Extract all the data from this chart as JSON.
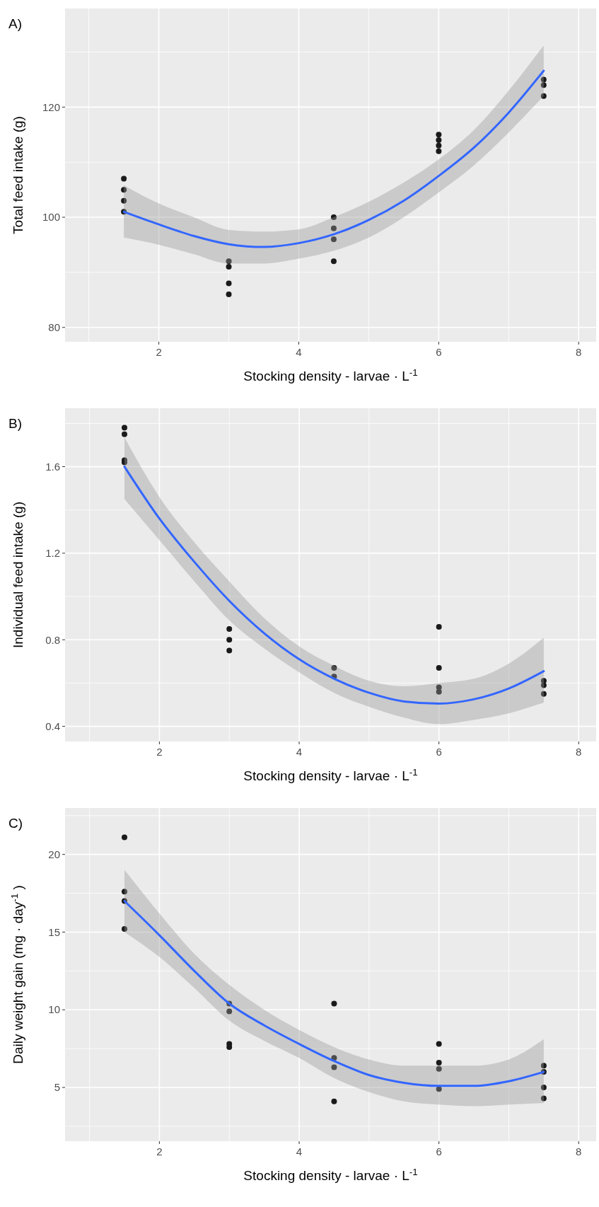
{
  "chart_data": [
    {
      "type": "scatter",
      "title": "A)",
      "xlabel": "Stocking density - larvae · L$^{-1}$",
      "ylabel": "Total feed intake (g)",
      "xlim": [
        0.66,
        8.25
      ],
      "ylim": [
        77.4,
        137.9
      ],
      "xticks": [
        2,
        4,
        6,
        8
      ],
      "yticks": [
        80,
        100,
        120
      ],
      "grid": true,
      "series": [
        {
          "type": "scatter",
          "color": "#1a1a1a",
          "marker": "circle",
          "x": [
            1.5,
            1.5,
            1.5,
            1.5,
            3,
            3,
            3,
            3,
            4.5,
            4.5,
            4.5,
            4.5,
            6,
            6,
            6,
            6,
            7.5,
            7.5,
            7.5
          ],
          "values": [
            107,
            105,
            103,
            101,
            92,
            91,
            88,
            86,
            100,
            98,
            96,
            92,
            115,
            114,
            113,
            112,
            125,
            124,
            122
          ]
        },
        {
          "type": "line",
          "color": "#3366ff",
          "line_style": "solid",
          "x": [
            1.5,
            2,
            2.5,
            3,
            3.5,
            4,
            4.5,
            5,
            5.5,
            6,
            6.5,
            7,
            7.5
          ],
          "values": [
            101,
            98.7,
            96.6,
            95.1,
            94.6,
            95.3,
            96.9,
            99.5,
            103,
            107.5,
            112.6,
            119,
            126.6
          ],
          "lower": [
            96.3,
            95,
            93.3,
            91.6,
            91.6,
            92.5,
            93.9,
            96.3,
            100,
            104.5,
            109.4,
            115.4,
            122
          ],
          "upper": [
            105.8,
            102.5,
            100,
            97.7,
            97.4,
            97.8,
            100,
            102.8,
            106.3,
            110.5,
            115.8,
            123,
            131.2
          ]
        }
      ]
    },
    {
      "type": "scatter",
      "title": "B)",
      "xlabel": "Stocking density - larvae · L$^{-1}$",
      "ylabel": "Individual feed intake (g)",
      "xlim": [
        0.65,
        8.25
      ],
      "ylim": [
        0.33,
        1.87
      ],
      "xticks": [
        2,
        4,
        6,
        8
      ],
      "yticks": [
        0.4,
        0.8,
        1.2,
        1.6
      ],
      "grid": true,
      "series": [
        {
          "type": "scatter",
          "color": "#1a1a1a",
          "marker": "circle",
          "x": [
            1.5,
            1.5,
            1.5,
            1.5,
            3,
            3,
            3,
            4.5,
            4.5,
            6,
            6,
            6,
            6,
            7.5,
            7.5,
            7.5
          ],
          "values": [
            1.78,
            1.75,
            1.63,
            1.62,
            0.85,
            0.8,
            0.75,
            0.67,
            0.63,
            0.86,
            0.67,
            0.58,
            0.56,
            0.61,
            0.59,
            0.55
          ]
        },
        {
          "type": "line",
          "color": "#3366ff",
          "line_style": "solid",
          "x": [
            1.5,
            2,
            2.5,
            3,
            3.5,
            4,
            4.5,
            5,
            5.5,
            6,
            6.5,
            7,
            7.5
          ],
          "values": [
            1.6,
            1.36,
            1.16,
            0.98,
            0.83,
            0.71,
            0.62,
            0.555,
            0.515,
            0.505,
            0.525,
            0.575,
            0.655
          ],
          "lower": [
            1.45,
            1.26,
            1.07,
            0.89,
            0.76,
            0.65,
            0.555,
            0.49,
            0.44,
            0.41,
            0.43,
            0.46,
            0.51
          ],
          "upper": [
            1.735,
            1.46,
            1.25,
            1.07,
            0.9,
            0.77,
            0.68,
            0.61,
            0.585,
            0.6,
            0.62,
            0.69,
            0.81
          ]
        }
      ]
    },
    {
      "type": "scatter",
      "title": "C)",
      "xlabel": "Stocking density - larvae · L$^{-1}$",
      "ylabel": "Daily weight gain (mg · day$^{-1}$ )",
      "xlim": [
        0.65,
        8.25
      ],
      "ylim": [
        1.54,
        22.99
      ],
      "xticks": [
        2,
        4,
        6,
        8
      ],
      "yticks": [
        5,
        10,
        15,
        20
      ],
      "grid": true,
      "series": [
        {
          "type": "scatter",
          "color": "#1a1a1a",
          "marker": "circle",
          "x": [
            1.5,
            1.5,
            1.5,
            1.5,
            3,
            3,
            3,
            3,
            4.5,
            4.5,
            4.5,
            4.5,
            6,
            6,
            6,
            6,
            7.5,
            7.5,
            7.5,
            7.5
          ],
          "values": [
            21.1,
            17.6,
            17,
            15.2,
            10.4,
            9.9,
            7.8,
            7.6,
            10.4,
            6.9,
            6.3,
            4.1,
            7.8,
            6.6,
            6.2,
            4.9,
            6.4,
            6,
            5,
            4.3
          ]
        },
        {
          "type": "line",
          "color": "#3366ff",
          "line_style": "solid",
          "x": [
            1.5,
            2,
            2.5,
            3,
            3.5,
            4,
            4.5,
            5,
            5.5,
            6,
            6.5,
            7,
            7.5
          ],
          "values": [
            17,
            14.8,
            12.5,
            10.4,
            9,
            7.8,
            6.7,
            5.8,
            5.3,
            5.1,
            5.1,
            5.4,
            6
          ],
          "lower": [
            15,
            13.4,
            11.4,
            9.3,
            8,
            6.9,
            5.6,
            4.7,
            4.1,
            3.9,
            3.8,
            3.9,
            4
          ],
          "upper": [
            19,
            16.2,
            13.6,
            11.6,
            10,
            8.7,
            7.6,
            6.8,
            6.4,
            6.4,
            6.4,
            6.8,
            8.1
          ]
        }
      ]
    }
  ]
}
